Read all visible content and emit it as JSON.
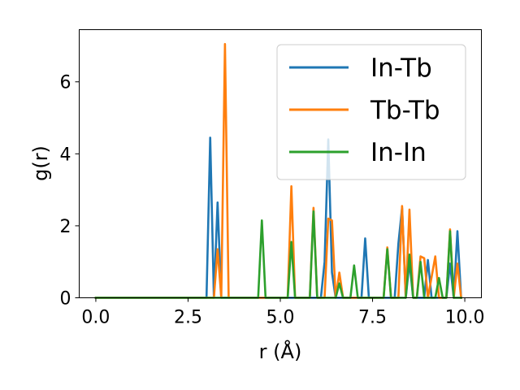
{
  "chart_data": {
    "type": "line",
    "title": "",
    "xlabel": "r (Å)",
    "ylabel": "g(r)",
    "xlim": [
      -0.45,
      10.45
    ],
    "ylim": [
      0,
      7.45
    ],
    "xticks": [
      0.0,
      2.5,
      5.0,
      7.5,
      10.0
    ],
    "xtick_labels": [
      "0.0",
      "2.5",
      "5.0",
      "7.5",
      "10.0"
    ],
    "yticks": [
      0,
      2,
      4,
      6
    ],
    "ytick_labels": [
      "0",
      "2",
      "4",
      "6"
    ],
    "grid": false,
    "legend_position": "top-right",
    "series": [
      {
        "name": "In-Tb",
        "color": "#1f77b4",
        "points": [
          [
            0.0,
            0
          ],
          [
            3.0,
            0
          ],
          [
            3.1,
            4.45
          ],
          [
            3.2,
            0
          ],
          [
            3.3,
            2.65
          ],
          [
            3.4,
            0
          ],
          [
            3.5,
            0
          ],
          [
            6.1,
            0
          ],
          [
            6.2,
            1.0
          ],
          [
            6.3,
            4.4
          ],
          [
            6.4,
            0.7
          ],
          [
            6.5,
            0
          ],
          [
            7.2,
            0
          ],
          [
            7.3,
            1.65
          ],
          [
            7.4,
            0
          ],
          [
            8.1,
            0
          ],
          [
            8.2,
            1.5
          ],
          [
            8.3,
            2.5
          ],
          [
            8.4,
            0
          ],
          [
            8.5,
            1.0
          ],
          [
            8.6,
            0
          ],
          [
            8.9,
            0
          ],
          [
            9.0,
            1.05
          ],
          [
            9.1,
            0
          ],
          [
            9.5,
            0
          ],
          [
            9.6,
            0.95
          ],
          [
            9.7,
            0
          ],
          [
            9.8,
            1.85
          ],
          [
            9.9,
            0
          ]
        ]
      },
      {
        "name": "Tb-Tb",
        "color": "#ff7f0e",
        "points": [
          [
            0.0,
            0
          ],
          [
            3.2,
            0
          ],
          [
            3.3,
            1.35
          ],
          [
            3.4,
            0
          ],
          [
            3.5,
            7.05
          ],
          [
            3.6,
            0
          ],
          [
            5.2,
            0
          ],
          [
            5.3,
            3.1
          ],
          [
            5.4,
            0
          ],
          [
            5.8,
            0
          ],
          [
            5.9,
            2.5
          ],
          [
            6.0,
            0
          ],
          [
            6.2,
            0
          ],
          [
            6.3,
            2.2
          ],
          [
            6.4,
            2.15
          ],
          [
            6.5,
            0
          ],
          [
            6.6,
            0.7
          ],
          [
            6.7,
            0
          ],
          [
            7.8,
            0
          ],
          [
            7.9,
            1.4
          ],
          [
            8.0,
            0
          ],
          [
            8.2,
            0
          ],
          [
            8.3,
            2.55
          ],
          [
            8.4,
            0
          ],
          [
            8.5,
            2.45
          ],
          [
            8.6,
            0
          ],
          [
            8.7,
            0
          ],
          [
            8.8,
            1.15
          ],
          [
            8.9,
            1.1
          ],
          [
            9.0,
            0
          ],
          [
            9.2,
            1.15
          ],
          [
            9.3,
            0
          ],
          [
            9.5,
            0
          ],
          [
            9.6,
            1.9
          ],
          [
            9.7,
            0
          ],
          [
            9.8,
            0.95
          ],
          [
            9.9,
            0
          ]
        ]
      },
      {
        "name": "In-In",
        "color": "#2ca02c",
        "points": [
          [
            0.0,
            0
          ],
          [
            4.4,
            0
          ],
          [
            4.5,
            2.15
          ],
          [
            4.6,
            0
          ],
          [
            5.2,
            0
          ],
          [
            5.3,
            1.55
          ],
          [
            5.4,
            0
          ],
          [
            5.8,
            0
          ],
          [
            5.9,
            2.4
          ],
          [
            6.0,
            0
          ],
          [
            6.5,
            0
          ],
          [
            6.6,
            0.4
          ],
          [
            6.7,
            0
          ],
          [
            6.9,
            0
          ],
          [
            7.0,
            0.9
          ],
          [
            7.1,
            0
          ],
          [
            7.8,
            0
          ],
          [
            7.9,
            1.35
          ],
          [
            8.0,
            0
          ],
          [
            8.4,
            0
          ],
          [
            8.5,
            1.2
          ],
          [
            8.6,
            0
          ],
          [
            8.7,
            0
          ],
          [
            8.8,
            1.0
          ],
          [
            8.9,
            0
          ],
          [
            9.2,
            0
          ],
          [
            9.3,
            0.55
          ],
          [
            9.4,
            0
          ],
          [
            9.5,
            0
          ],
          [
            9.6,
            1.85
          ],
          [
            9.7,
            0
          ],
          [
            9.9,
            0
          ]
        ]
      }
    ]
  }
}
